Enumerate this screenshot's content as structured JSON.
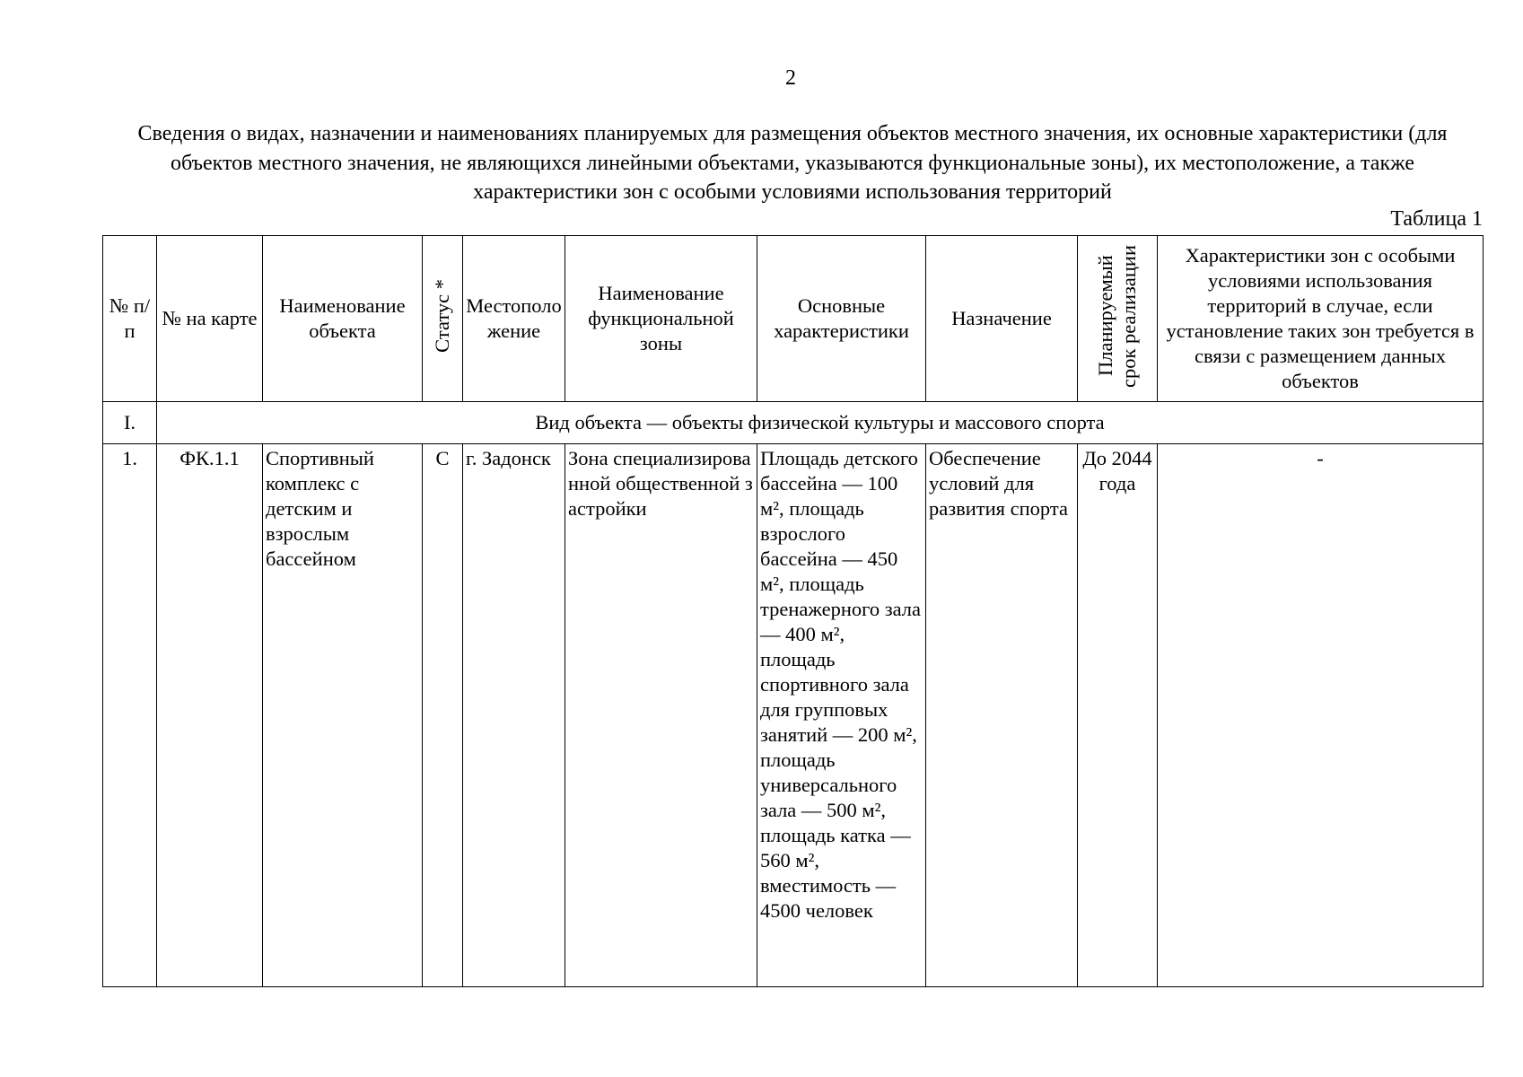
{
  "page_number": "2",
  "title": "Сведения о видах, назначении и наименованиях планируемых для размещения объектов местного значения, их основные характеристики (для объектов местного значения, не являющихся линейными объектами, указываются функциональные зоны), их местоположение, а также характеристики зон с особыми условиями использования территорий",
  "table_label": "Таблица 1",
  "table": {
    "headers": [
      "№ п/п",
      "№ на карте",
      "Наименование объекта",
      "Статус *",
      "Местоположение",
      "Наименование функциональной зоны",
      "Основные характеристики",
      "Назначение",
      "Планируемый срок реализации",
      "Характеристики зон с особыми условиями использования территорий в случае, если установление таких зон требуется в связи с размещением данных объектов"
    ],
    "section": {
      "number": "I.",
      "label": "Вид объекта — объекты физической культуры и массового спорта"
    },
    "rows": [
      [
        "1.",
        "ФК.1.1",
        "Спортивный комплекс с детским и взрослым бассейном",
        "С",
        "г. Задонск",
        "Зона специализированной общественной застройки",
        "Площадь детского бассейна — 100 м², площадь взрослого бассейна — 450 м², площадь тренажерного зала — 400 м², площадь спортивного зала для групповых занятий — 200 м², площадь универсального зала — 500 м², площадь катка — 560 м², вместимость — 4500 человек",
        "Обеспечение условий для развития спорта",
        "До 2044 года",
        "-"
      ]
    ]
  }
}
